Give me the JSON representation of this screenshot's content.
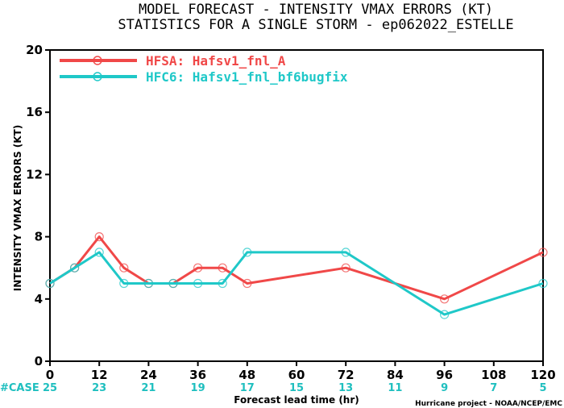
{
  "chart_data": {
    "type": "line",
    "title": "MODEL FORECAST - INTENSITY VMAX ERRORS (KT)",
    "subtitle": "STATISTICS FOR A SINGLE STORM - ep062022_ESTELLE",
    "xlabel": "Forecast lead time (hr)",
    "ylabel": "INTENSITY VMAX ERRORS (KT)",
    "xlim": [
      0,
      120
    ],
    "ylim": [
      0,
      20
    ],
    "x_ticks": [
      0,
      12,
      24,
      36,
      48,
      60,
      72,
      84,
      96,
      108,
      120
    ],
    "y_ticks": [
      0,
      4,
      8,
      12,
      16,
      20
    ],
    "legend_position": "top-left",
    "series": [
      {
        "name": "HFSA: Hafsv1_fnl_A",
        "color": "#f04848",
        "x": [
          0,
          6,
          12,
          18,
          24,
          30,
          36,
          42,
          48,
          72,
          96,
          120
        ],
        "values": [
          5,
          6,
          8,
          6,
          5,
          5,
          6,
          6,
          5,
          6,
          4,
          7
        ]
      },
      {
        "name": "HFC6: Hafsv1_fnl_bf6bugfix",
        "color": "#1fc8c8",
        "x": [
          0,
          6,
          12,
          18,
          24,
          30,
          36,
          42,
          48,
          72,
          96,
          120
        ],
        "values": [
          5,
          6,
          7,
          5,
          5,
          5,
          5,
          5,
          7,
          7,
          3,
          5
        ]
      }
    ],
    "case_label": "#CASE",
    "case_x": [
      0,
      12,
      24,
      36,
      48,
      60,
      72,
      84,
      96,
      108,
      120
    ],
    "case_counts": [
      "25",
      "23",
      "21",
      "19",
      "17",
      "15",
      "13",
      "11",
      "9",
      "7",
      "5"
    ],
    "credit": "Hurricane project - NOAA/NCEP/EMC"
  }
}
